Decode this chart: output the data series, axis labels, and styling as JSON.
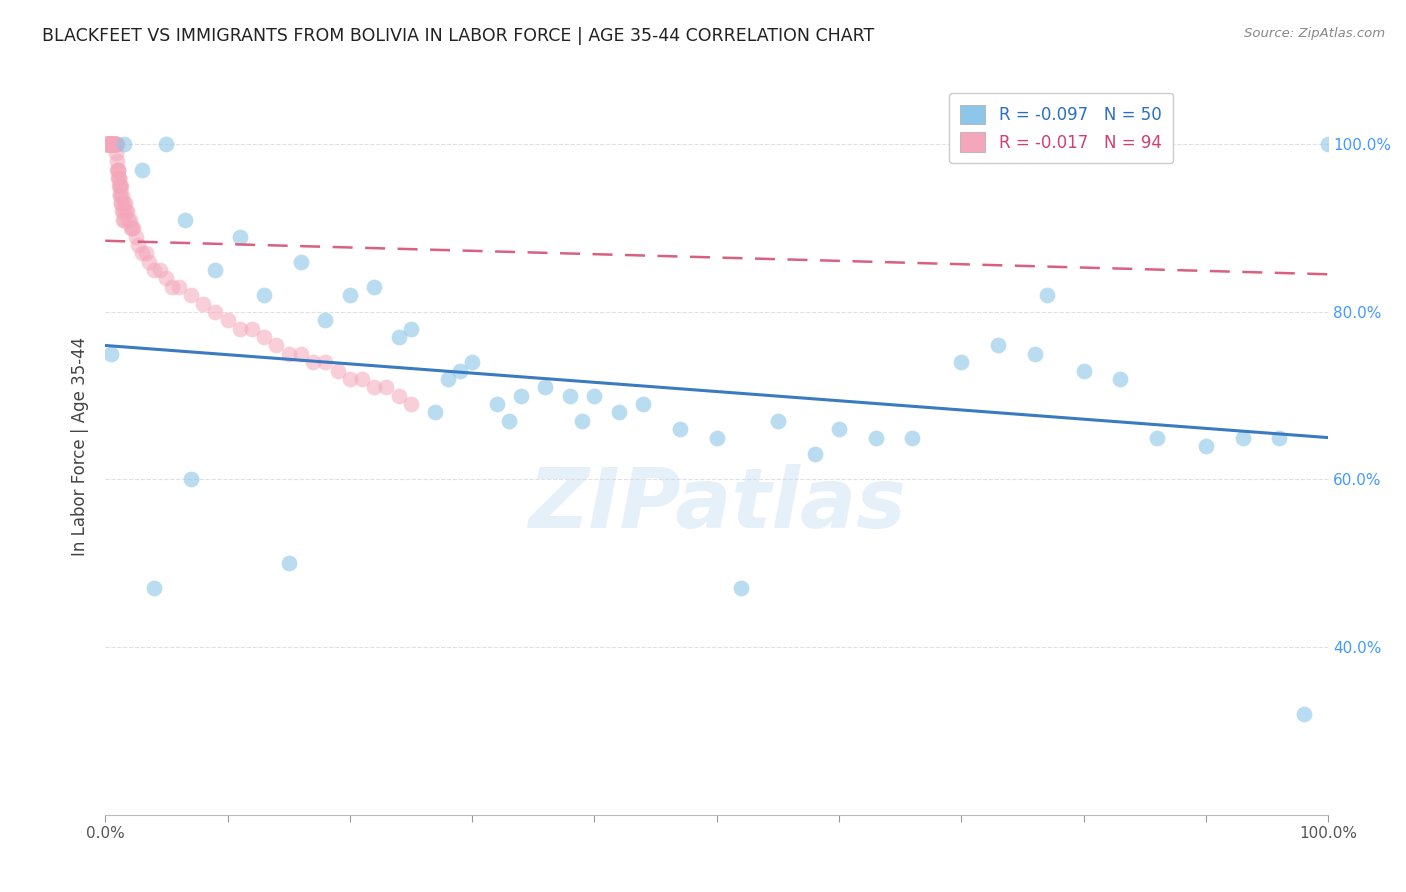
{
  "title": "BLACKFEET VS IMMIGRANTS FROM BOLIVIA IN LABOR FORCE | AGE 35-44 CORRELATION CHART",
  "source": "Source: ZipAtlas.com",
  "ylabel": "In Labor Force | Age 35-44",
  "watermark": "ZIPatlas",
  "blue_label": "Blackfeet",
  "pink_label": "Immigrants from Bolivia",
  "blue_R": -0.097,
  "blue_N": 50,
  "pink_R": -0.017,
  "pink_N": 94,
  "blue_color": "#8dc6e8",
  "pink_color": "#f4a7bb",
  "blue_line_color": "#3a7bbf",
  "pink_line_color": "#d96080",
  "blue_points_x": [
    0.5,
    1.5,
    3.0,
    5.0,
    6.5,
    9.0,
    11.0,
    13.0,
    16.0,
    18.0,
    20.0,
    22.0,
    24.0,
    27.0,
    28.0,
    29.0,
    30.0,
    32.0,
    34.0,
    36.0,
    38.0,
    40.0,
    42.0,
    44.0,
    47.0,
    50.0,
    55.0,
    58.0,
    60.0,
    63.0,
    66.0,
    70.0,
    73.0,
    76.0,
    80.0,
    83.0,
    86.0,
    90.0,
    93.0,
    96.0,
    98.0,
    100.0,
    4.0,
    7.0,
    15.0,
    25.0,
    33.0,
    39.0,
    52.0,
    77.0
  ],
  "blue_points_y": [
    75.0,
    100.0,
    97.0,
    100.0,
    91.0,
    85.0,
    89.0,
    82.0,
    86.0,
    79.0,
    82.0,
    83.0,
    77.0,
    68.0,
    72.0,
    73.0,
    74.0,
    69.0,
    70.0,
    71.0,
    70.0,
    70.0,
    68.0,
    69.0,
    66.0,
    65.0,
    67.0,
    63.0,
    66.0,
    65.0,
    65.0,
    74.0,
    76.0,
    75.0,
    73.0,
    72.0,
    65.0,
    64.0,
    65.0,
    65.0,
    32.0,
    100.0,
    47.0,
    60.0,
    50.0,
    78.0,
    67.0,
    67.0,
    47.0,
    82.0
  ],
  "pink_points_x": [
    0.05,
    0.1,
    0.15,
    0.2,
    0.25,
    0.3,
    0.35,
    0.4,
    0.45,
    0.5,
    0.55,
    0.6,
    0.65,
    0.7,
    0.75,
    0.8,
    0.85,
    0.9,
    0.95,
    1.0,
    1.05,
    1.1,
    1.15,
    1.2,
    1.25,
    1.3,
    1.4,
    1.5,
    1.6,
    1.7,
    1.8,
    1.9,
    2.0,
    2.1,
    2.2,
    2.3,
    2.5,
    2.7,
    3.0,
    3.3,
    3.6,
    4.0,
    4.5,
    5.0,
    5.5,
    6.0,
    7.0,
    8.0,
    9.0,
    10.0,
    11.0,
    12.0,
    13.0,
    14.0,
    15.0,
    16.0,
    17.0,
    18.0,
    19.0,
    20.0,
    21.0,
    22.0,
    23.0,
    24.0,
    25.0,
    0.12,
    0.18,
    0.22,
    0.28,
    0.32,
    0.38,
    0.42,
    0.48,
    0.52,
    0.58,
    0.62,
    0.68,
    0.72,
    0.78,
    0.82,
    0.88,
    0.92,
    0.98,
    1.02,
    1.08,
    1.12,
    1.18,
    1.22,
    1.28,
    1.32,
    1.38,
    1.42,
    1.48,
    1.52
  ],
  "pink_points_y": [
    100.0,
    100.0,
    100.0,
    100.0,
    100.0,
    100.0,
    100.0,
    100.0,
    100.0,
    100.0,
    100.0,
    100.0,
    100.0,
    100.0,
    100.0,
    100.0,
    100.0,
    99.0,
    98.0,
    97.0,
    97.0,
    96.0,
    96.0,
    95.0,
    95.0,
    95.0,
    94.0,
    93.0,
    93.0,
    92.0,
    92.0,
    91.0,
    91.0,
    90.0,
    90.0,
    90.0,
    89.0,
    88.0,
    87.0,
    87.0,
    86.0,
    85.0,
    85.0,
    84.0,
    83.0,
    83.0,
    82.0,
    81.0,
    80.0,
    79.0,
    78.0,
    78.0,
    77.0,
    76.0,
    75.0,
    75.0,
    74.0,
    74.0,
    73.0,
    72.0,
    72.0,
    71.0,
    71.0,
    70.0,
    69.0,
    100.0,
    100.0,
    100.0,
    100.0,
    100.0,
    100.0,
    100.0,
    100.0,
    100.0,
    100.0,
    100.0,
    100.0,
    100.0,
    100.0,
    100.0,
    100.0,
    100.0,
    100.0,
    97.0,
    96.0,
    95.0,
    94.0,
    94.0,
    93.0,
    93.0,
    92.0,
    92.0,
    91.0,
    91.0
  ],
  "xlim": [
    0.0,
    100.0
  ],
  "ylim": [
    20.0,
    108.0
  ],
  "yticks": [
    40.0,
    60.0,
    80.0,
    100.0
  ],
  "ytick_labels": [
    "40.0%",
    "60.0%",
    "80.0%",
    "100.0%"
  ],
  "xticks": [
    0.0,
    10.0,
    20.0,
    30.0,
    40.0,
    50.0,
    60.0,
    70.0,
    80.0,
    90.0,
    100.0
  ],
  "background_color": "#ffffff",
  "grid_color": "#e0e0e0",
  "blue_trendline_y0": 76.0,
  "blue_trendline_y1": 65.0,
  "pink_trendline_y0": 88.5,
  "pink_trendline_y1": 84.5
}
